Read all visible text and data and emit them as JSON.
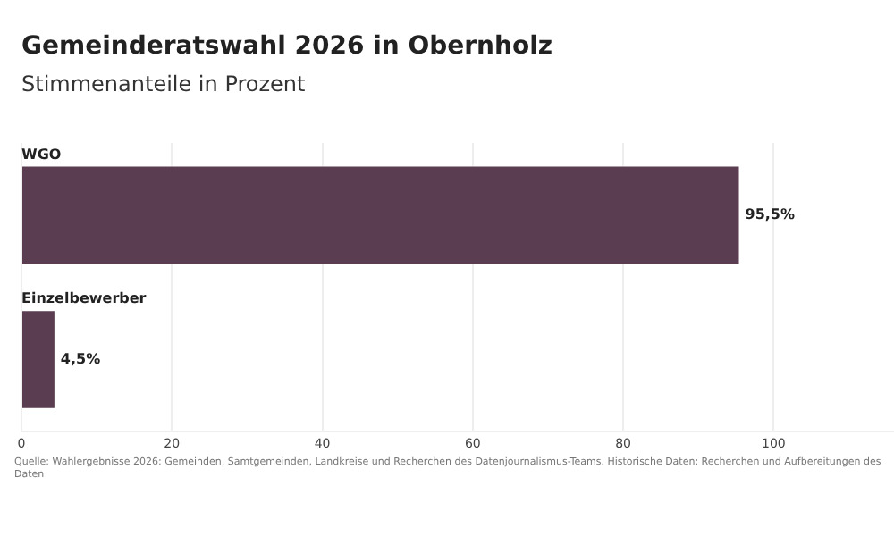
{
  "chart_data": {
    "type": "bar",
    "orientation": "horizontal",
    "title": "Gemeinderatswahl 2026 in Obernholz",
    "subtitle": "Stimmenanteile in Prozent",
    "categories": [
      "WGO",
      "Einzelbewerber"
    ],
    "values": [
      95.5,
      4.5
    ],
    "value_labels": [
      "95,5%",
      "4,5%"
    ],
    "color": "#5a3d50",
    "xlim": [
      0,
      116
    ],
    "xticks": [
      0,
      20,
      40,
      60,
      80,
      100
    ],
    "grid": "x",
    "legend": false,
    "annotations": [
      "Quelle: Wahlergebnisse 2026: Gemeinden, Samtgemeinden, Landkreise und Recherchen des Datenjournalismus-Teams. Historische Daten: Recherchen und Aufbereitungen des Daten"
    ]
  }
}
